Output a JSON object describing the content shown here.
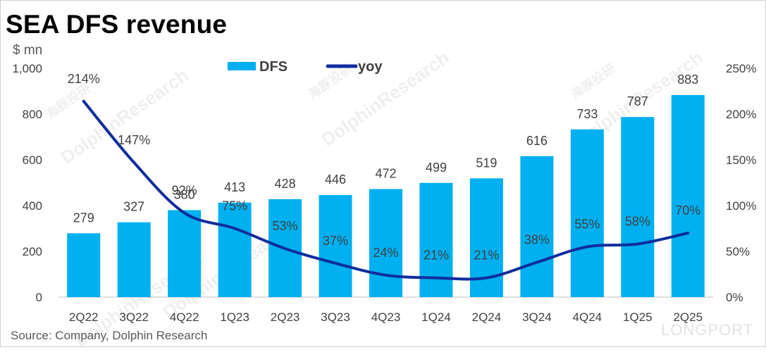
{
  "title": "SEA DFS revenue",
  "unit_label": "$ mn",
  "source": "Source: Company, Dolphin Research",
  "watermarks": [
    "DolphinResearch",
    "海豚投研"
  ],
  "brand_watermark": "LONGPORT",
  "colors": {
    "bar": "#00b0f0",
    "line": "#0f2d9e",
    "text": "#404040",
    "axis": "#bfbfbf"
  },
  "chart_data": {
    "type": "bar",
    "title": "SEA DFS revenue",
    "xlabel": "",
    "ylabel": "$ mn",
    "y2label": "",
    "categories": [
      "2Q22",
      "3Q22",
      "4Q22",
      "1Q23",
      "2Q23",
      "3Q23",
      "4Q23",
      "1Q24",
      "2Q24",
      "3Q24",
      "4Q24",
      "1Q25",
      "2Q25"
    ],
    "series": [
      {
        "name": "DFS",
        "type": "bar",
        "axis": "left",
        "values": [
          279,
          327,
          380,
          413,
          428,
          446,
          472,
          499,
          519,
          616,
          733,
          787,
          883
        ]
      },
      {
        "name": "yoy",
        "type": "line",
        "axis": "right",
        "values": [
          214,
          147,
          92,
          75,
          53,
          37,
          24,
          21,
          21,
          38,
          55,
          58,
          70
        ],
        "labels": [
          "214%",
          "147%",
          "92%",
          "75%",
          "53%",
          "37%",
          "24%",
          "21%",
          "21%",
          "38%",
          "55%",
          "58%",
          "70%"
        ]
      }
    ],
    "ylim": [
      0,
      1000
    ],
    "yticks": [
      0,
      200,
      400,
      600,
      800,
      1000
    ],
    "ytick_labels": [
      "0",
      "200",
      "400",
      "600",
      "800",
      "1,000"
    ],
    "y2lim": [
      0,
      250
    ],
    "y2ticks": [
      0,
      50,
      100,
      150,
      200,
      250
    ],
    "y2tick_labels": [
      "0%",
      "50%",
      "100%",
      "150%",
      "200%",
      "250%"
    ],
    "legend": {
      "position": "top-center",
      "entries": [
        "DFS",
        "yoy"
      ]
    }
  }
}
